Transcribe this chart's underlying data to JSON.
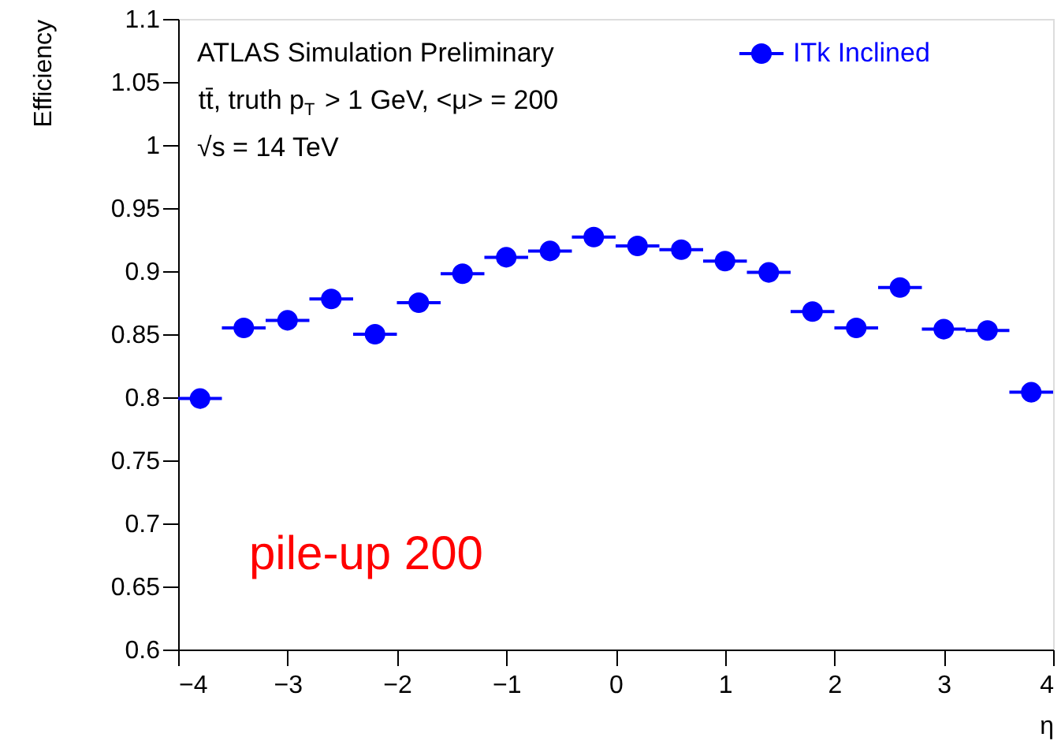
{
  "chart_data": {
    "type": "scatter",
    "xlabel": "η",
    "ylabel": "Efficiency",
    "x": [
      -3.8,
      -3.4,
      -3.0,
      -2.6,
      -2.2,
      -1.8,
      -1.4,
      -1.0,
      -0.6,
      -0.2,
      0.2,
      0.6,
      1.0,
      1.4,
      1.8,
      2.2,
      2.6,
      3.0,
      3.4,
      3.8
    ],
    "series": [
      {
        "name": "ITk Inclined",
        "color": "#0000ff",
        "values": [
          0.799,
          0.855,
          0.861,
          0.878,
          0.85,
          0.875,
          0.898,
          0.911,
          0.916,
          0.927,
          0.92,
          0.917,
          0.908,
          0.899,
          0.868,
          0.855,
          0.887,
          0.854,
          0.853,
          0.804
        ],
        "xerrors": [
          0.2,
          0.2,
          0.2,
          0.2,
          0.2,
          0.2,
          0.2,
          0.2,
          0.2,
          0.2,
          0.2,
          0.2,
          0.2,
          0.2,
          0.2,
          0.2,
          0.2,
          0.2,
          0.2,
          0.2
        ]
      }
    ],
    "xlim": [
      -4,
      4
    ],
    "xticks": [
      -4,
      -3,
      -2,
      -1,
      0,
      1,
      2,
      3,
      4
    ],
    "ylim": [
      0.6,
      1.1
    ],
    "yticks": [
      0.6,
      0.65,
      0.7,
      0.75,
      0.8,
      0.85,
      0.9,
      0.95,
      1,
      1.05,
      1.1
    ],
    "annotations": [
      "ATLAS Simulation Preliminary",
      "tt̄, truth p$_{T}$ > 1 GeV, <μ> = 200",
      "√s = 14 TeV",
      "pile-up 200"
    ],
    "marker": "circle",
    "legend": "top right",
    "grid": false
  }
}
